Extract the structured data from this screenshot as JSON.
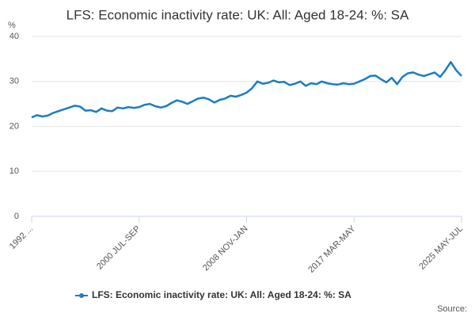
{
  "chart_data": {
    "type": "line",
    "title": "LFS: Economic inactivity rate: UK: All: Aged 18-24: %: SA",
    "y_label": "%",
    "source": "Source:",
    "categories": [
      "1992 ...",
      null,
      null,
      null,
      null,
      null,
      null,
      null,
      null,
      null,
      null,
      null,
      null,
      null,
      null,
      null,
      null,
      null,
      null,
      null,
      "2000 JUL-SEP",
      null,
      null,
      null,
      null,
      null,
      null,
      null,
      null,
      null,
      null,
      null,
      null,
      null,
      null,
      null,
      null,
      null,
      null,
      null,
      "2008 NOV-JAN",
      null,
      null,
      null,
      null,
      null,
      null,
      null,
      null,
      null,
      null,
      null,
      null,
      null,
      null,
      null,
      null,
      null,
      null,
      null,
      "2017 MAR-MAY",
      null,
      null,
      null,
      null,
      null,
      null,
      null,
      null,
      null,
      null,
      null,
      null,
      null,
      null,
      null,
      null,
      null,
      null,
      null,
      "2025 MAY-JUL"
    ],
    "series": [
      {
        "name": "LFS: Economic inactivity rate: UK: All: Aged 18-24: %: SA",
        "color": "#1a7dc0",
        "values": [
          22.0,
          22.5,
          22.2,
          22.4,
          23.0,
          23.4,
          23.8,
          24.2,
          24.6,
          24.4,
          23.5,
          23.6,
          23.2,
          24.0,
          23.5,
          23.4,
          24.2,
          24.0,
          24.3,
          24.1,
          24.3,
          24.8,
          25.0,
          24.5,
          24.2,
          24.5,
          25.2,
          25.8,
          25.5,
          25.0,
          25.6,
          26.2,
          26.4,
          26.0,
          25.3,
          25.9,
          26.2,
          26.8,
          26.6,
          27.0,
          27.5,
          28.5,
          30.0,
          29.5,
          29.7,
          30.2,
          29.8,
          29.9,
          29.2,
          29.5,
          30.0,
          29.0,
          29.6,
          29.4,
          30.0,
          29.6,
          29.4,
          29.3,
          29.6,
          29.4,
          29.5,
          30.0,
          30.5,
          31.2,
          31.3,
          30.5,
          29.8,
          30.8,
          29.4,
          31.0,
          31.8,
          32.0,
          31.5,
          31.2,
          31.6,
          32.0,
          31.0,
          32.5,
          34.3,
          32.5,
          31.2
        ]
      }
    ],
    "ylim": [
      0,
      40
    ],
    "yticks": [
      0,
      10,
      20,
      30,
      40
    ],
    "grid": true
  }
}
